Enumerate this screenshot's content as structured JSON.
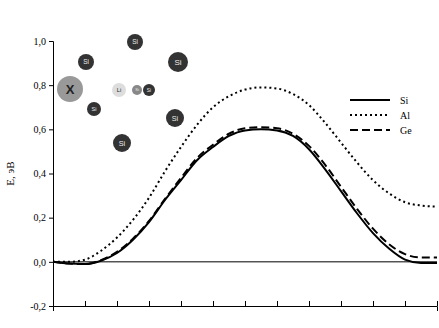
{
  "chart_data": {
    "type": "line",
    "y_label": "E, эВ",
    "x": [
      0,
      0.5,
      1,
      1.5,
      2,
      2.5,
      3,
      3.5,
      4,
      4.5,
      5,
      5.5,
      6,
      6.5,
      7,
      7.5,
      8,
      8.5,
      9,
      9.5,
      10,
      10.5,
      11,
      11.5,
      12
    ],
    "series": [
      {
        "name": "Si",
        "color": "#000000",
        "line_style": "solid",
        "values": [
          0,
          -0.008,
          -0.01,
          0.005,
          0.04,
          0.1,
          0.18,
          0.28,
          0.37,
          0.46,
          0.52,
          0.57,
          0.595,
          0.6,
          0.595,
          0.57,
          0.51,
          0.42,
          0.32,
          0.22,
          0.13,
          0.06,
          0.01,
          -0.005,
          -0.005
        ]
      },
      {
        "name": "Al",
        "color": "#000000",
        "line_style": "dotted",
        "values": [
          0,
          0,
          0.01,
          0.05,
          0.11,
          0.19,
          0.29,
          0.41,
          0.52,
          0.62,
          0.7,
          0.75,
          0.78,
          0.79,
          0.785,
          0.76,
          0.71,
          0.63,
          0.54,
          0.45,
          0.37,
          0.31,
          0.27,
          0.255,
          0.25
        ]
      },
      {
        "name": "Ge",
        "color": "#000000",
        "line_style": "dashed",
        "values": [
          0,
          -0.008,
          -0.01,
          0.008,
          0.045,
          0.105,
          0.185,
          0.285,
          0.38,
          0.47,
          0.53,
          0.58,
          0.605,
          0.61,
          0.605,
          0.58,
          0.525,
          0.44,
          0.34,
          0.24,
          0.15,
          0.08,
          0.035,
          0.02,
          0.02
        ]
      }
    ],
    "xlim": [
      0,
      12
    ],
    "xticks": [
      0,
      1,
      2,
      3,
      4,
      5,
      6,
      7,
      8,
      9,
      10,
      11,
      12
    ],
    "ylim": [
      -0.2,
      1.0
    ],
    "yticks": [
      {
        "value": -0.2,
        "label": "-0,2"
      },
      {
        "value": 0,
        "label": "0,0"
      },
      {
        "value": 0.2,
        "label": "0,2"
      },
      {
        "value": 0.4,
        "label": "0,4"
      },
      {
        "value": 0.6,
        "label": "0,6"
      },
      {
        "value": 0.8,
        "label": "0,8"
      },
      {
        "value": 1.0,
        "label": "1,0"
      }
    ],
    "tick_labels": "y",
    "grid": false,
    "legend": "upper right",
    "annotations": [
      "X",
      "Si",
      "Si",
      "Si",
      "Si",
      "Li",
      "Si",
      "Si",
      "Si",
      "Si"
    ]
  }
}
